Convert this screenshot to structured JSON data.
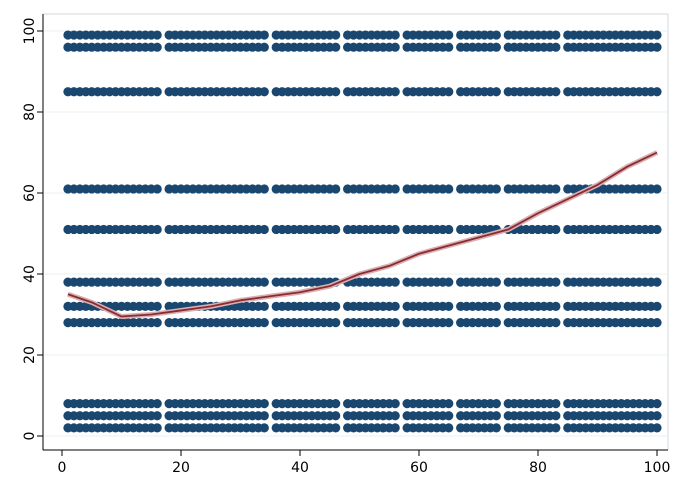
{
  "chart_data": {
    "type": "scatter",
    "x": [
      1,
      2,
      3,
      4,
      5,
      6,
      7,
      8,
      9,
      10,
      11,
      12,
      13,
      14,
      15,
      16,
      18,
      19,
      20,
      21,
      22,
      23,
      24,
      25,
      26,
      27,
      28,
      29,
      30,
      31,
      32,
      33,
      34,
      36,
      37,
      38,
      39,
      40,
      41,
      42,
      43,
      44,
      45,
      46,
      48,
      49,
      50,
      51,
      52,
      53,
      54,
      55,
      56,
      58,
      59,
      60,
      61,
      62,
      63,
      64,
      65,
      67,
      68,
      69,
      70,
      71,
      72,
      73,
      75,
      76,
      77,
      78,
      79,
      80,
      81,
      82,
      83,
      85,
      86,
      87,
      88,
      89,
      90,
      91,
      92,
      93,
      94,
      95,
      96,
      97,
      98,
      99,
      100
    ],
    "series": [
      {
        "color": "#1a476f",
        "values": [
          99,
          99,
          99,
          99,
          99,
          99,
          99,
          99,
          99,
          99,
          99,
          99,
          99,
          99,
          99,
          99,
          99,
          99,
          99,
          99,
          99,
          99,
          99,
          99,
          99,
          99,
          99,
          99,
          99,
          99,
          99,
          99,
          99,
          99,
          99,
          99,
          99,
          99,
          99,
          99,
          99,
          99,
          99,
          99,
          99,
          99,
          99,
          99,
          99,
          99,
          99,
          99,
          99,
          99,
          99,
          99,
          99,
          99,
          99,
          99,
          99,
          99,
          99,
          99,
          99,
          99,
          99,
          99,
          99,
          99,
          99,
          99,
          99,
          99,
          99,
          99,
          99,
          99,
          99,
          99,
          99,
          99,
          99,
          99,
          99,
          99,
          99,
          99,
          99,
          99,
          99,
          99,
          99
        ]
      },
      {
        "color": "#1a476f",
        "values": [
          96,
          96,
          96,
          96,
          96,
          96,
          96,
          96,
          96,
          96,
          96,
          96,
          96,
          96,
          96,
          96,
          96,
          96,
          96,
          96,
          96,
          96,
          96,
          96,
          96,
          96,
          96,
          96,
          96,
          96,
          96,
          96,
          96,
          96,
          96,
          96,
          96,
          96,
          96,
          96,
          96,
          96,
          96,
          96,
          96,
          96,
          96,
          96,
          96,
          96,
          96,
          96,
          96,
          96,
          96,
          96,
          96,
          96,
          96,
          96,
          96,
          96,
          96,
          96,
          96,
          96,
          96,
          96,
          96,
          96,
          96,
          96,
          96,
          96,
          96,
          96,
          96,
          96,
          96,
          96,
          96,
          96,
          96,
          96,
          96,
          96,
          96,
          96,
          96,
          96,
          96,
          96,
          96
        ]
      },
      {
        "color": "#1a476f",
        "values": [
          85,
          85,
          85,
          85,
          85,
          85,
          85,
          85,
          85,
          85,
          85,
          85,
          85,
          85,
          85,
          85,
          85,
          85,
          85,
          85,
          85,
          85,
          85,
          85,
          85,
          85,
          85,
          85,
          85,
          85,
          85,
          85,
          85,
          85,
          85,
          85,
          85,
          85,
          85,
          85,
          85,
          85,
          85,
          85,
          85,
          85,
          85,
          85,
          85,
          85,
          85,
          85,
          85,
          85,
          85,
          85,
          85,
          85,
          85,
          85,
          85,
          85,
          85,
          85,
          85,
          85,
          85,
          85,
          85,
          85,
          85,
          85,
          85,
          85,
          85,
          85,
          85,
          85,
          85,
          85,
          85,
          85,
          85,
          85,
          85,
          85,
          85,
          85,
          85,
          85,
          85,
          85,
          85
        ]
      },
      {
        "color": "#1a476f",
        "values": [
          61,
          61,
          61,
          61,
          61,
          61,
          61,
          61,
          61,
          61,
          61,
          61,
          61,
          61,
          61,
          61,
          61,
          61,
          61,
          61,
          61,
          61,
          61,
          61,
          61,
          61,
          61,
          61,
          61,
          61,
          61,
          61,
          61,
          61,
          61,
          61,
          61,
          61,
          61,
          61,
          61,
          61,
          61,
          61,
          61,
          61,
          61,
          61,
          61,
          61,
          61,
          61,
          61,
          61,
          61,
          61,
          61,
          61,
          61,
          61,
          61,
          61,
          61,
          61,
          61,
          61,
          61,
          61,
          61,
          61,
          61,
          61,
          61,
          61,
          61,
          61,
          61,
          61,
          61,
          61,
          61,
          61,
          61,
          61,
          61,
          61,
          61,
          61,
          61,
          61,
          61,
          61,
          61
        ]
      },
      {
        "color": "#1a476f",
        "values": [
          51,
          51,
          51,
          51,
          51,
          51,
          51,
          51,
          51,
          51,
          51,
          51,
          51,
          51,
          51,
          51,
          51,
          51,
          51,
          51,
          51,
          51,
          51,
          51,
          51,
          51,
          51,
          51,
          51,
          51,
          51,
          51,
          51,
          51,
          51,
          51,
          51,
          51,
          51,
          51,
          51,
          51,
          51,
          51,
          51,
          51,
          51,
          51,
          51,
          51,
          51,
          51,
          51,
          51,
          51,
          51,
          51,
          51,
          51,
          51,
          51,
          51,
          51,
          51,
          51,
          51,
          51,
          51,
          51,
          51,
          51,
          51,
          51,
          51,
          51,
          51,
          51,
          51,
          51,
          51,
          51,
          51,
          51,
          51,
          51,
          51,
          51,
          51,
          51,
          51,
          51,
          51,
          51
        ]
      },
      {
        "color": "#1a476f",
        "values": [
          38,
          38,
          38,
          38,
          38,
          38,
          38,
          38,
          38,
          38,
          38,
          38,
          38,
          38,
          38,
          38,
          38,
          38,
          38,
          38,
          38,
          38,
          38,
          38,
          38,
          38,
          38,
          38,
          38,
          38,
          38,
          38,
          38,
          38,
          38,
          38,
          38,
          38,
          38,
          38,
          38,
          38,
          38,
          38,
          38,
          38,
          38,
          38,
          38,
          38,
          38,
          38,
          38,
          38,
          38,
          38,
          38,
          38,
          38,
          38,
          38,
          38,
          38,
          38,
          38,
          38,
          38,
          38,
          38,
          38,
          38,
          38,
          38,
          38,
          38,
          38,
          38,
          38,
          38,
          38,
          38,
          38,
          38,
          38,
          38,
          38,
          38,
          38,
          38,
          38,
          38,
          38,
          38
        ]
      },
      {
        "color": "#1a476f",
        "values": [
          32,
          32,
          32,
          32,
          32,
          32,
          32,
          32,
          32,
          32,
          32,
          32,
          32,
          32,
          32,
          32,
          32,
          32,
          32,
          32,
          32,
          32,
          32,
          32,
          32,
          32,
          32,
          32,
          32,
          32,
          32,
          32,
          32,
          32,
          32,
          32,
          32,
          32,
          32,
          32,
          32,
          32,
          32,
          32,
          32,
          32,
          32,
          32,
          32,
          32,
          32,
          32,
          32,
          32,
          32,
          32,
          32,
          32,
          32,
          32,
          32,
          32,
          32,
          32,
          32,
          32,
          32,
          32,
          32,
          32,
          32,
          32,
          32,
          32,
          32,
          32,
          32,
          32,
          32,
          32,
          32,
          32,
          32,
          32,
          32,
          32,
          32,
          32,
          32,
          32,
          32,
          32,
          32
        ]
      },
      {
        "color": "#1a476f",
        "values": [
          28,
          28,
          28,
          28,
          28,
          28,
          28,
          28,
          28,
          28,
          28,
          28,
          28,
          28,
          28,
          28,
          28,
          28,
          28,
          28,
          28,
          28,
          28,
          28,
          28,
          28,
          28,
          28,
          28,
          28,
          28,
          28,
          28,
          28,
          28,
          28,
          28,
          28,
          28,
          28,
          28,
          28,
          28,
          28,
          28,
          28,
          28,
          28,
          28,
          28,
          28,
          28,
          28,
          28,
          28,
          28,
          28,
          28,
          28,
          28,
          28,
          28,
          28,
          28,
          28,
          28,
          28,
          28,
          28,
          28,
          28,
          28,
          28,
          28,
          28,
          28,
          28,
          28,
          28,
          28,
          28,
          28,
          28,
          28,
          28,
          28,
          28,
          28,
          28,
          28,
          28,
          28,
          28
        ]
      },
      {
        "color": "#1a476f",
        "values": [
          8,
          8,
          8,
          8,
          8,
          8,
          8,
          8,
          8,
          8,
          8,
          8,
          8,
          8,
          8,
          8,
          8,
          8,
          8,
          8,
          8,
          8,
          8,
          8,
          8,
          8,
          8,
          8,
          8,
          8,
          8,
          8,
          8,
          8,
          8,
          8,
          8,
          8,
          8,
          8,
          8,
          8,
          8,
          8,
          8,
          8,
          8,
          8,
          8,
          8,
          8,
          8,
          8,
          8,
          8,
          8,
          8,
          8,
          8,
          8,
          8,
          8,
          8,
          8,
          8,
          8,
          8,
          8,
          8,
          8,
          8,
          8,
          8,
          8,
          8,
          8,
          8,
          8,
          8,
          8,
          8,
          8,
          8,
          8,
          8,
          8,
          8,
          8,
          8,
          8,
          8,
          8,
          8
        ]
      },
      {
        "color": "#1a476f",
        "values": [
          5,
          5,
          5,
          5,
          5,
          5,
          5,
          5,
          5,
          5,
          5,
          5,
          5,
          5,
          5,
          5,
          5,
          5,
          5,
          5,
          5,
          5,
          5,
          5,
          5,
          5,
          5,
          5,
          5,
          5,
          5,
          5,
          5,
          5,
          5,
          5,
          5,
          5,
          5,
          5,
          5,
          5,
          5,
          5,
          5,
          5,
          5,
          5,
          5,
          5,
          5,
          5,
          5,
          5,
          5,
          5,
          5,
          5,
          5,
          5,
          5,
          5,
          5,
          5,
          5,
          5,
          5,
          5,
          5,
          5,
          5,
          5,
          5,
          5,
          5,
          5,
          5,
          5,
          5,
          5,
          5,
          5,
          5,
          5,
          5,
          5,
          5,
          5,
          5,
          5,
          5,
          5,
          5
        ]
      },
      {
        "color": "#1a476f",
        "values": [
          2,
          2,
          2,
          2,
          2,
          2,
          2,
          2,
          2,
          2,
          2,
          2,
          2,
          2,
          2,
          2,
          2,
          2,
          2,
          2,
          2,
          2,
          2,
          2,
          2,
          2,
          2,
          2,
          2,
          2,
          2,
          2,
          2,
          2,
          2,
          2,
          2,
          2,
          2,
          2,
          2,
          2,
          2,
          2,
          2,
          2,
          2,
          2,
          2,
          2,
          2,
          2,
          2,
          2,
          2,
          2,
          2,
          2,
          2,
          2,
          2,
          2,
          2,
          2,
          2,
          2,
          2,
          2,
          2,
          2,
          2,
          2,
          2,
          2,
          2,
          2,
          2,
          2,
          2,
          2,
          2,
          2,
          2,
          2,
          2,
          2,
          2,
          2,
          2,
          2,
          2,
          2,
          2
        ]
      }
    ],
    "lowess": {
      "color": "#8c2a32",
      "x": [
        1,
        5,
        10,
        15,
        20,
        25,
        30,
        35,
        40,
        45,
        50,
        55,
        60,
        65,
        70,
        75,
        80,
        85,
        90,
        95,
        100
      ],
      "values": [
        35,
        33,
        29.5,
        30,
        31,
        32,
        33.5,
        34.5,
        35.5,
        37,
        40,
        42,
        45,
        47,
        49,
        51,
        55,
        58.5,
        62,
        66.5,
        70
      ]
    },
    "xlim": [
      0,
      100
    ],
    "ylim": [
      0,
      100
    ],
    "xticks": [
      0,
      20,
      40,
      60,
      80,
      100
    ],
    "yticks": [
      0,
      20,
      40,
      60,
      80,
      100
    ],
    "grid": true
  }
}
